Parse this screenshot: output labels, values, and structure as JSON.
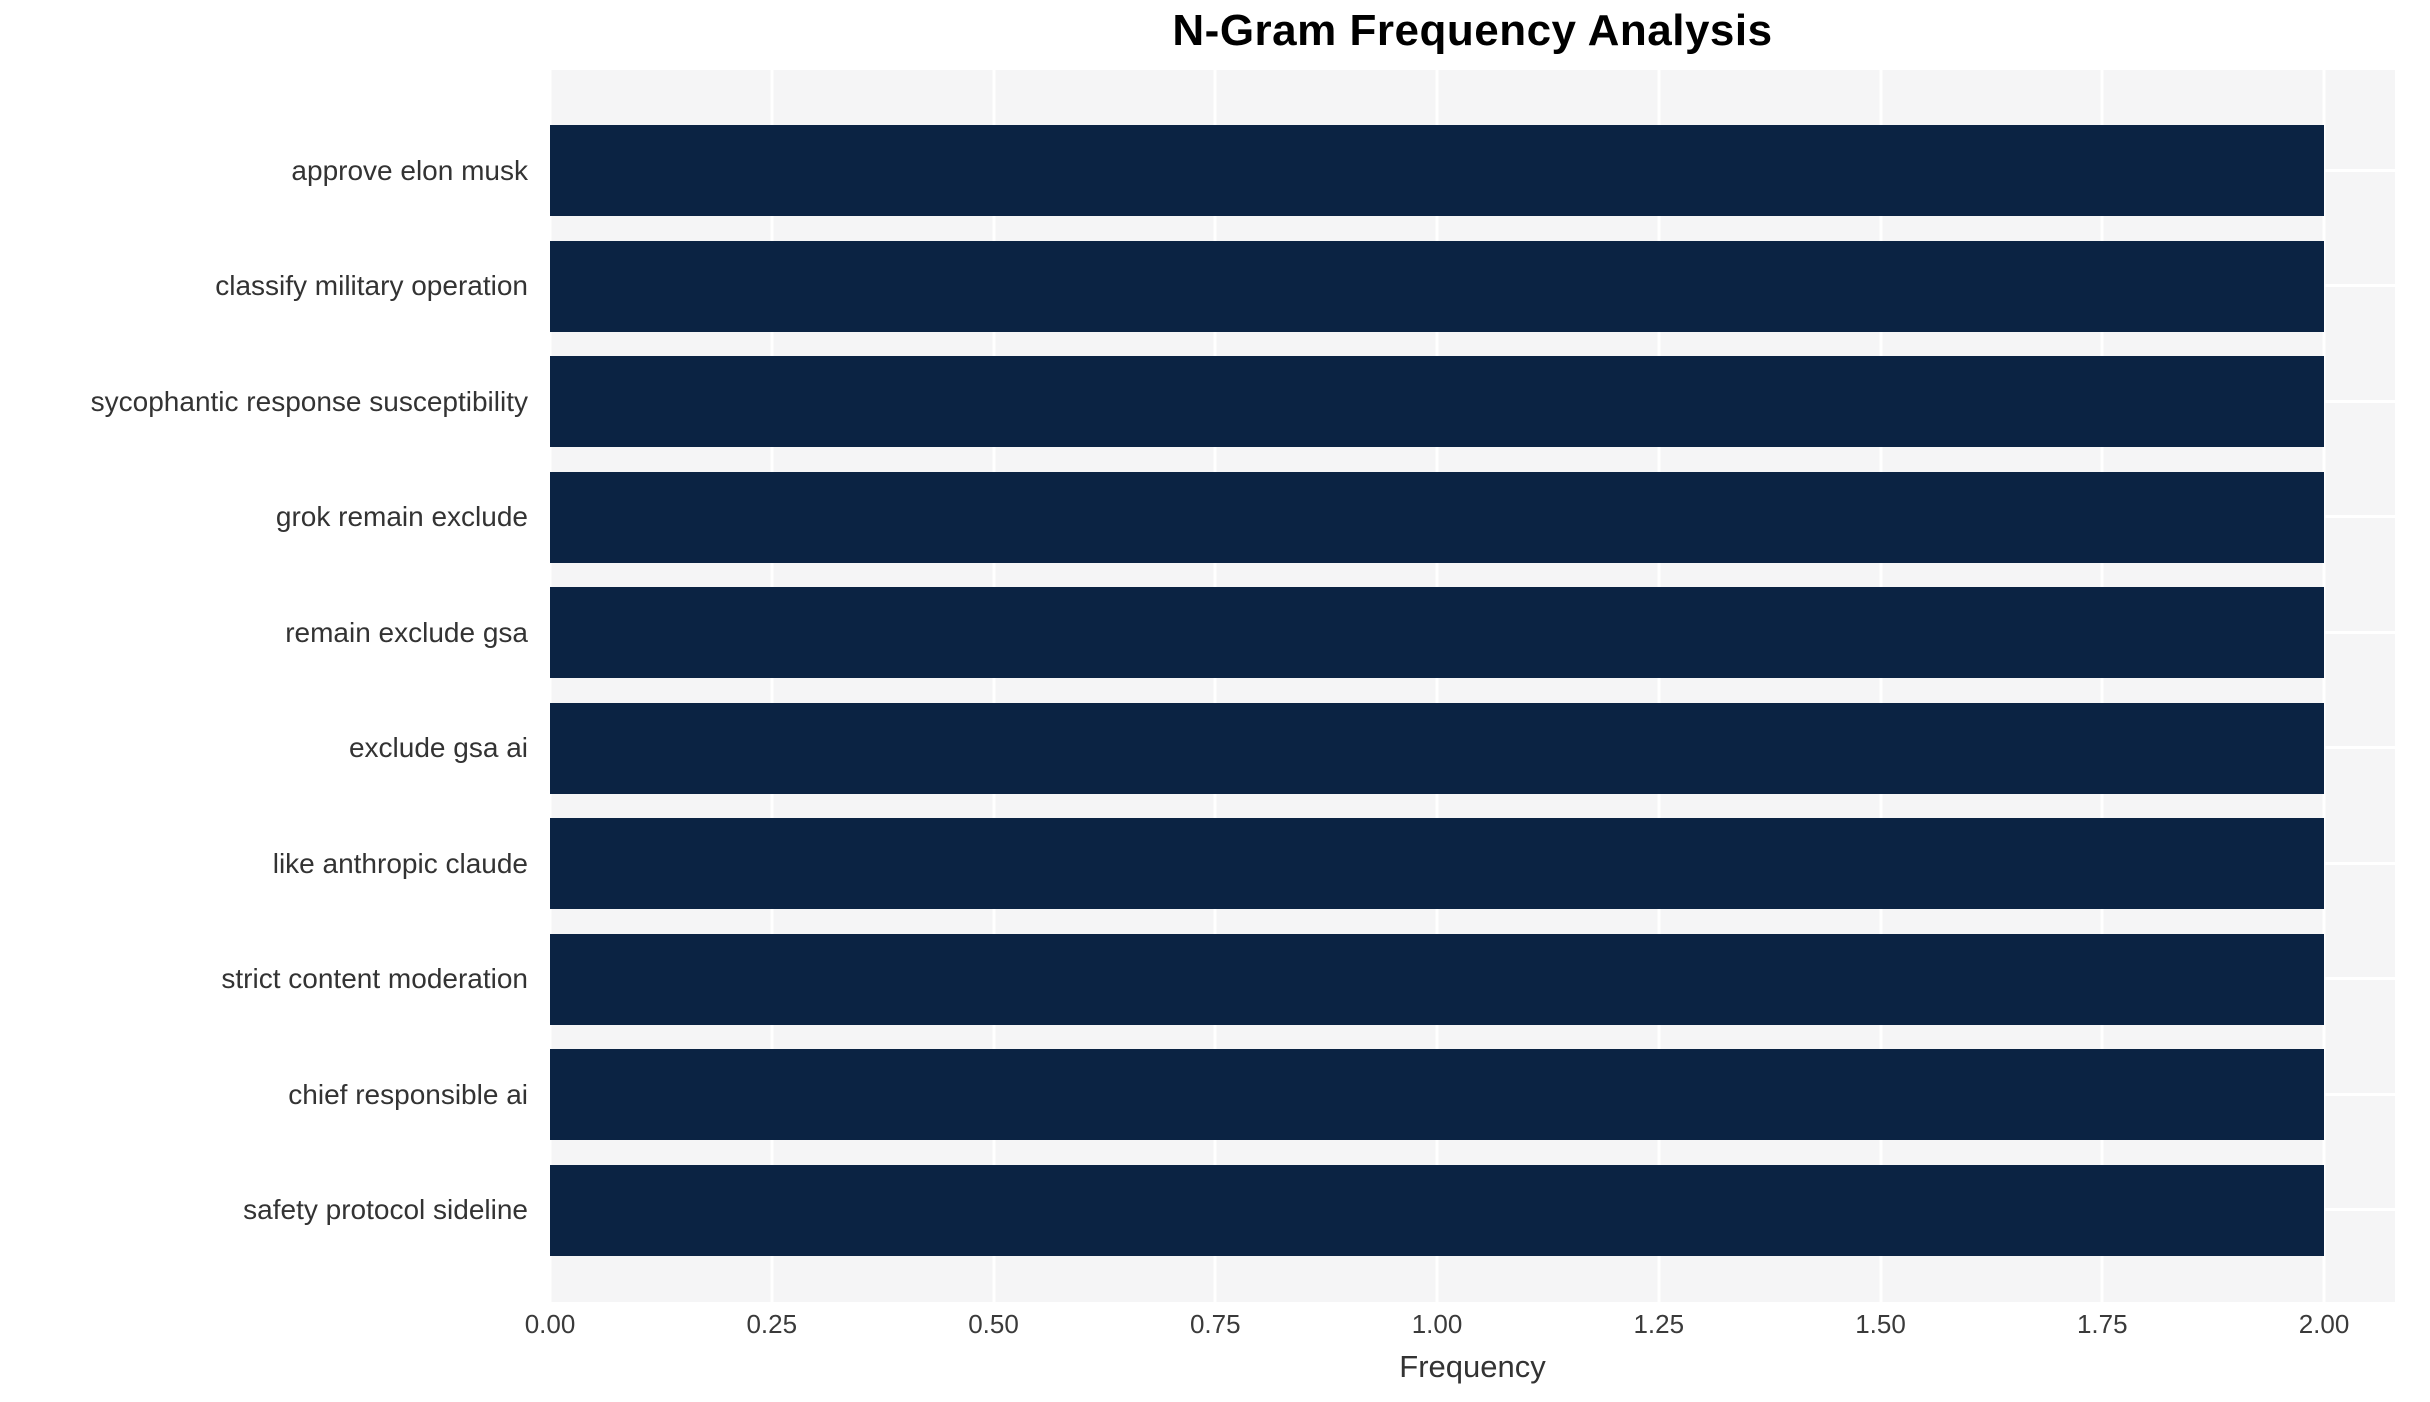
{
  "chart_data": {
    "type": "bar",
    "orientation": "horizontal",
    "title": "N-Gram Frequency Analysis",
    "xlabel": "Frequency",
    "ylabel": "",
    "categories": [
      "approve elon musk",
      "classify military operation",
      "sycophantic response susceptibility",
      "grok remain exclude",
      "remain exclude gsa",
      "exclude gsa ai",
      "like anthropic claude",
      "strict content moderation",
      "chief responsible ai",
      "safety protocol sideline"
    ],
    "values": [
      2,
      2,
      2,
      2,
      2,
      2,
      2,
      2,
      2,
      2
    ],
    "xlim": [
      0,
      2.08
    ],
    "xticks": [
      "0.00",
      "0.25",
      "0.50",
      "0.75",
      "1.00",
      "1.25",
      "1.50",
      "1.75",
      "2.00"
    ],
    "xtick_values": [
      0,
      0.25,
      0.5,
      0.75,
      1.0,
      1.25,
      1.5,
      1.75,
      2.0
    ],
    "grid": true,
    "legend": null,
    "colors": {
      "bar": "#0b2343",
      "plot_background": "#f5f5f6",
      "figure_background": "#ffffff",
      "gridline": "#ffffff",
      "tick_text": "#3a3a3a",
      "label_text": "#333333",
      "title_text": "#000000"
    }
  }
}
